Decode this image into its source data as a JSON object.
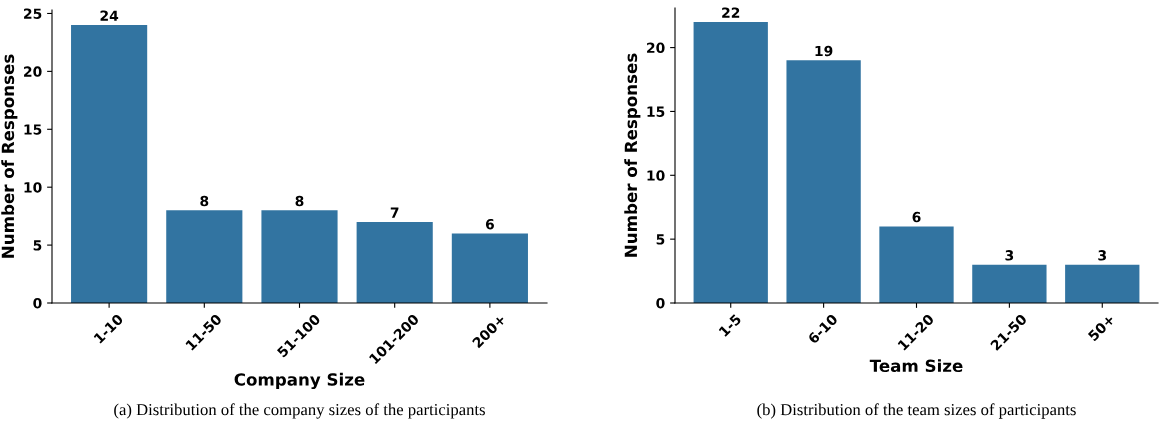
{
  "chart_data": [
    {
      "type": "bar",
      "xlabel": "Company Size",
      "ylabel": "Number of Responses",
      "categories": [
        "1-10",
        "11-50",
        "51-100",
        "101-200",
        "200+"
      ],
      "values": [
        24,
        8,
        8,
        7,
        6
      ],
      "color": "#3274a1",
      "ylim": [
        0,
        25.3
      ],
      "yticks": [
        0,
        5,
        10,
        15,
        20,
        25
      ],
      "data_labels": true,
      "grid": false,
      "legend": false,
      "annotations": [
        "(a) Distribution of the company sizes of the participants"
      ]
    },
    {
      "type": "bar",
      "xlabel": "Team Size",
      "ylabel": "Number of Responses",
      "categories": [
        "1-5",
        "6-10",
        "11-20",
        "21-50",
        "50+"
      ],
      "values": [
        22,
        19,
        6,
        3,
        3
      ],
      "color": "#3274a1",
      "ylim": [
        0,
        23.1
      ],
      "yticks": [
        0,
        5,
        10,
        15,
        20
      ],
      "data_labels": true,
      "grid": false,
      "legend": false,
      "annotations": [
        "(b) Distribution of the team sizes of participants"
      ]
    }
  ]
}
